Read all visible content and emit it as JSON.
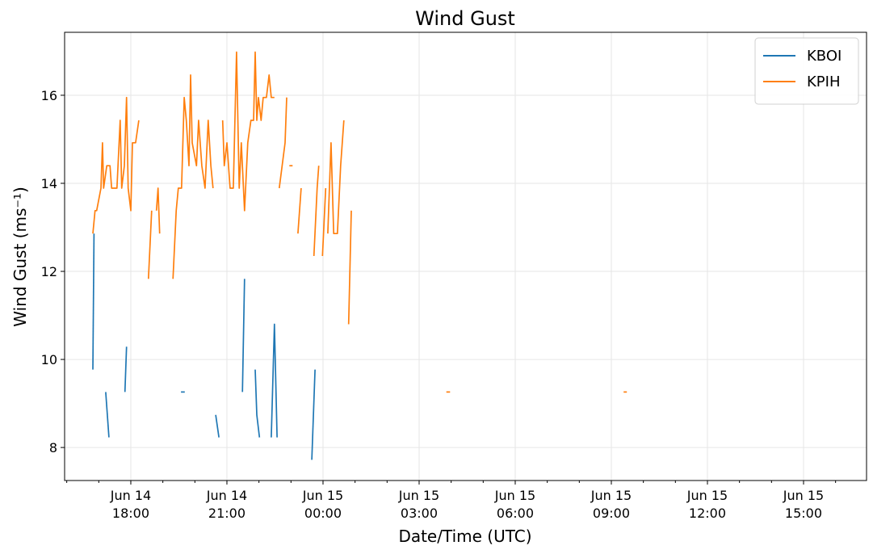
{
  "chart_data": {
    "type": "line",
    "title": "Wind Gust",
    "xlabel": "Date/Time (UTC)",
    "ylabel": "Wind Gust (ms⁻¹)",
    "xlim": [
      "Jun 14 15:56",
      "Jun 15 16:58"
    ],
    "xticks": [
      {
        "value": "Jun 14 18:00",
        "label": "Jun 14\n18:00"
      },
      {
        "value": "Jun 14 21:00",
        "label": "Jun 14\n21:00"
      },
      {
        "value": "Jun 15 00:00",
        "label": "Jun 15\n00:00"
      },
      {
        "value": "Jun 15 03:00",
        "label": "Jun 15\n03:00"
      },
      {
        "value": "Jun 15 06:00",
        "label": "Jun 15\n06:00"
      },
      {
        "value": "Jun 15 09:00",
        "label": "Jun 15\n09:00"
      },
      {
        "value": "Jun 15 12:00",
        "label": "Jun 15\n12:00"
      },
      {
        "value": "Jun 15 15:00",
        "label": "Jun 15\n15:00"
      }
    ],
    "ylim": [
      7.25,
      17.43
    ],
    "yticks": [
      8,
      10,
      12,
      14,
      16
    ],
    "grid": true,
    "legend": "upper right",
    "series": [
      {
        "name": "KBOI",
        "color": "#1f77b4",
        "x": [
          "Jun 14 16:49",
          "Jun 14 16:51",
          "Jun 14 17:00",
          "Jun 14 17:13",
          "Jun 14 17:19",
          "Jun 14 17:30",
          "Jun 14 17:49",
          "Jun 14 17:52",
          "Jun 14 18:30",
          "Jun 14 19:34",
          "Jun 14 19:41",
          "Jun 14 20:00",
          "Jun 14 20:39",
          "Jun 14 20:45",
          "Jun 14 21:00",
          "Jun 14 21:29",
          "Jun 14 21:33",
          "Jun 14 21:45",
          "Jun 14 21:53",
          "Jun 14 21:56",
          "Jun 14 22:01",
          "Jun 14 22:10",
          "Jun 14 22:23",
          "Jun 14 22:29",
          "Jun 14 22:34",
          "Jun 14 23:00",
          "Jun 14 23:39",
          "Jun 14 23:45"
        ],
        "values": [
          9.77,
          12.86,
          null,
          9.26,
          8.23,
          null,
          9.26,
          10.29,
          null,
          9.26,
          9.26,
          null,
          8.74,
          8.23,
          null,
          9.26,
          11.83,
          null,
          9.77,
          8.74,
          8.23,
          null,
          8.23,
          10.8,
          8.23,
          null,
          7.72,
          9.77
        ]
      },
      {
        "name": "KPIH",
        "color": "#ff7f0e",
        "x": [
          "Jun 14 16:49",
          "Jun 14 16:53",
          "Jun 14 16:56",
          "Jun 14 17:04",
          "Jun 14 17:07",
          "Jun 14 17:09",
          "Jun 14 17:15",
          "Jun 14 17:21",
          "Jun 14 17:24",
          "Jun 14 17:34",
          "Jun 14 17:40",
          "Jun 14 17:43",
          "Jun 14 17:48",
          "Jun 14 17:52",
          "Jun 14 17:55",
          "Jun 14 18:00",
          "Jun 14 18:03",
          "Jun 14 18:09",
          "Jun 14 18:15",
          "Jun 14 18:24",
          "Jun 14 18:33",
          "Jun 14 18:39",
          "Jun 14 18:44",
          "Jun 14 18:48",
          "Jun 14 18:51",
          "Jun 14 18:54",
          "Jun 14 19:06",
          "Jun 14 19:19",
          "Jun 14 19:25",
          "Jun 14 19:29",
          "Jun 14 19:35",
          "Jun 14 19:40",
          "Jun 14 19:44",
          "Jun 14 19:49",
          "Jun 14 19:52",
          "Jun 14 19:55",
          "Jun 14 20:03",
          "Jun 14 20:07",
          "Jun 14 20:13",
          "Jun 14 20:19",
          "Jun 14 20:25",
          "Jun 14 20:30",
          "Jun 14 20:34",
          "Jun 14 20:43",
          "Jun 14 20:52",
          "Jun 14 20:55",
          "Jun 14 21:00",
          "Jun 14 21:06",
          "Jun 14 21:12",
          "Jun 14 21:18",
          "Jun 14 21:23",
          "Jun 14 21:27",
          "Jun 14 21:33",
          "Jun 14 21:39",
          "Jun 14 21:45",
          "Jun 14 21:50",
          "Jun 14 21:53",
          "Jun 14 21:56",
          "Jun 14 21:59",
          "Jun 14 22:04",
          "Jun 14 22:08",
          "Jun 14 22:14",
          "Jun 14 22:19",
          "Jun 14 22:23",
          "Jun 14 22:29",
          "Jun 14 22:33",
          "Jun 14 22:38",
          "Jun 14 22:49",
          "Jun 14 22:52",
          "Jun 14 22:54",
          "Jun 14 22:57",
          "Jun 14 23:03",
          "Jun 14 23:08",
          "Jun 14 23:13",
          "Jun 14 23:19",
          "Jun 14 23:30",
          "Jun 14 23:43",
          "Jun 14 23:49",
          "Jun 14 23:52",
          "Jun 14 23:55",
          "Jun 14 23:59",
          "Jun 15 00:05",
          "Jun 15 00:07",
          "Jun 15 00:09",
          "Jun 15 00:15",
          "Jun 15 00:20",
          "Jun 15 00:27",
          "Jun 15 00:33",
          "Jun 15 00:39",
          "Jun 15 00:44",
          "Jun 15 00:48",
          "Jun 15 00:53",
          "Jun 15 02:00",
          "Jun 15 03:51",
          "Jun 15 03:58",
          "Jun 15 06:00",
          "Jun 15 09:23",
          "Jun 15 09:29"
        ],
        "values": [
          12.86,
          13.38,
          13.38,
          13.89,
          14.92,
          13.89,
          14.4,
          14.4,
          13.89,
          13.89,
          15.43,
          13.89,
          14.4,
          15.95,
          13.89,
          13.38,
          14.92,
          14.92,
          15.43,
          null,
          11.83,
          13.38,
          null,
          13.38,
          13.89,
          12.86,
          null,
          11.83,
          13.38,
          13.89,
          13.89,
          15.95,
          15.43,
          14.4,
          16.46,
          14.92,
          14.4,
          15.43,
          14.4,
          13.89,
          15.43,
          14.4,
          13.89,
          null,
          15.43,
          14.4,
          14.92,
          13.89,
          13.89,
          16.98,
          13.89,
          14.92,
          13.38,
          14.92,
          15.43,
          15.43,
          16.98,
          15.43,
          15.95,
          15.43,
          15.95,
          15.95,
          16.46,
          15.95,
          15.95,
          null,
          13.89,
          14.92,
          15.95,
          null,
          14.4,
          14.4,
          null,
          12.86,
          13.89,
          null,
          12.35,
          13.89,
          14.4,
          null,
          12.35,
          13.89,
          null,
          12.86,
          14.92,
          12.86,
          12.86,
          14.4,
          15.43,
          null,
          10.8,
          13.38,
          null,
          9.26,
          9.26,
          null,
          9.26,
          9.26
        ]
      }
    ]
  }
}
